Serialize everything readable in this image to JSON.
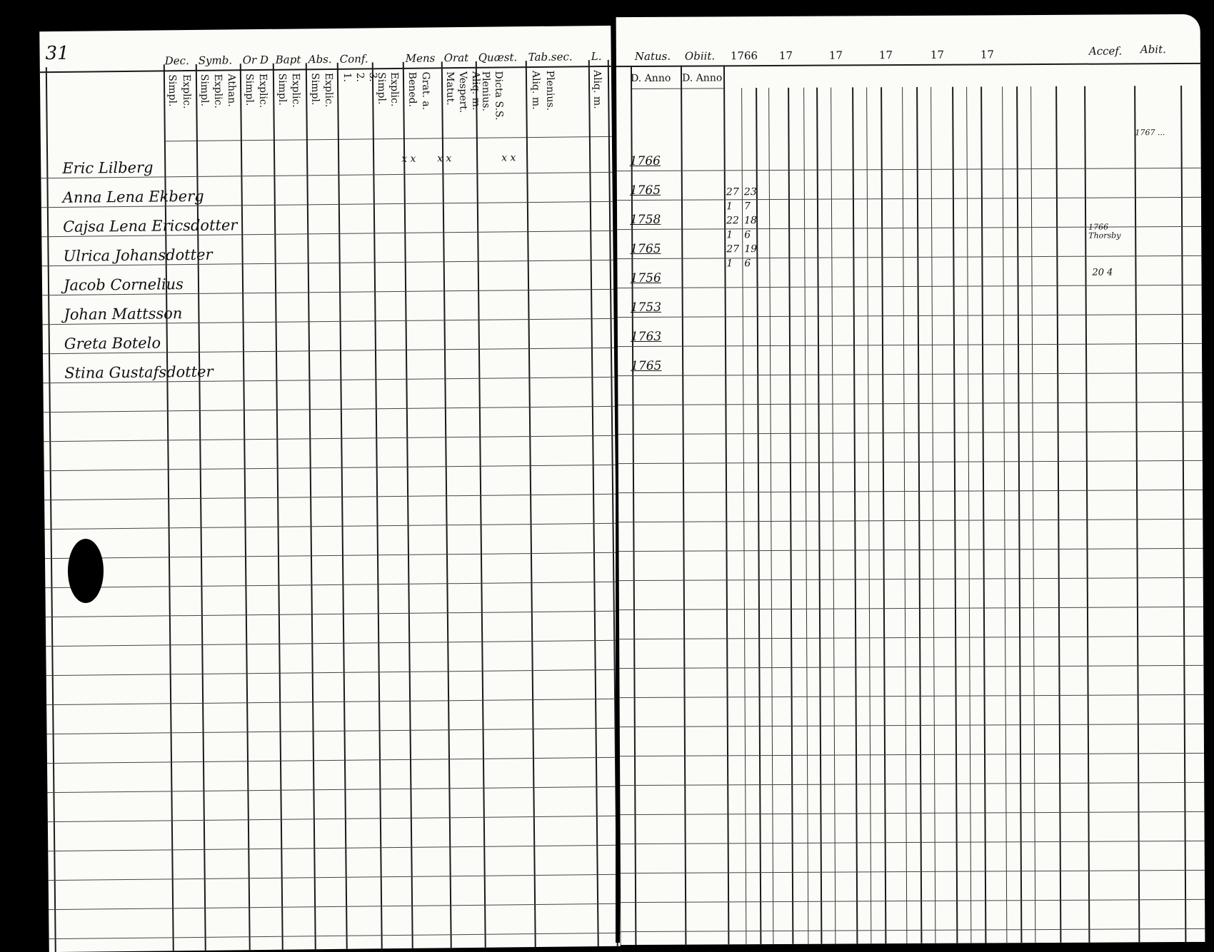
{
  "left_page": {
    "page_number": "31",
    "headers": [
      "Dec.",
      "Symb.",
      "Or D",
      "Bapt",
      "Abs.",
      "Conf.",
      "Mens",
      "Orat",
      "Quæst.",
      "Tab.sec.",
      "L."
    ],
    "subheaders": [
      "Simpl.",
      "Explic.",
      "Simpl.",
      "Explic.",
      "Athan.",
      "Simpl.",
      "Explic.",
      "Simpl.",
      "Explic.",
      "Simpl.",
      "Explic.",
      "1.",
      "2.",
      "3.",
      "Simpl.",
      "Explic.",
      "Bened.",
      "Grat. a.",
      "Matut.",
      "Vespert.",
      "Aliq. m.",
      "Plenius.",
      "Dicta S.S.",
      "Aliq. m.",
      "Plenius.",
      "Aliq. m."
    ],
    "names": [
      "Eric Lilberg",
      "Anna Lena Ekberg",
      "Cajsa Lena Ericsdotter",
      "Ulrica Johansdotter",
      "Jacob Cornelius",
      "Johan Mattsson",
      "Greta Botelo",
      "Stina Gustafsdotter"
    ],
    "marks": [
      "x x",
      "x x",
      "x x"
    ]
  },
  "right_page": {
    "headers": {
      "natus": "Natus.",
      "obiit": "Obiit.",
      "years": [
        "1766",
        "17",
        "17",
        "17",
        "17",
        "17"
      ],
      "accessit": "Accef.",
      "abiit": "Abit."
    },
    "subheaders": {
      "natus": "D. Anno",
      "obiit": "D. Anno"
    },
    "birth_years": [
      "1766",
      "1765",
      "1758",
      "1765",
      "1756",
      "1753",
      "1763",
      "1765"
    ],
    "entries_1766": [
      [
        "27",
        "23"
      ],
      [
        "1",
        "7"
      ],
      [
        "22",
        "18"
      ],
      [
        "1",
        "6"
      ],
      [
        "27",
        "19"
      ],
      [
        "1",
        "6"
      ]
    ],
    "accessit_notes": [
      "1766 Thorsby",
      "20 4"
    ],
    "margin_note": "1767 ..."
  }
}
